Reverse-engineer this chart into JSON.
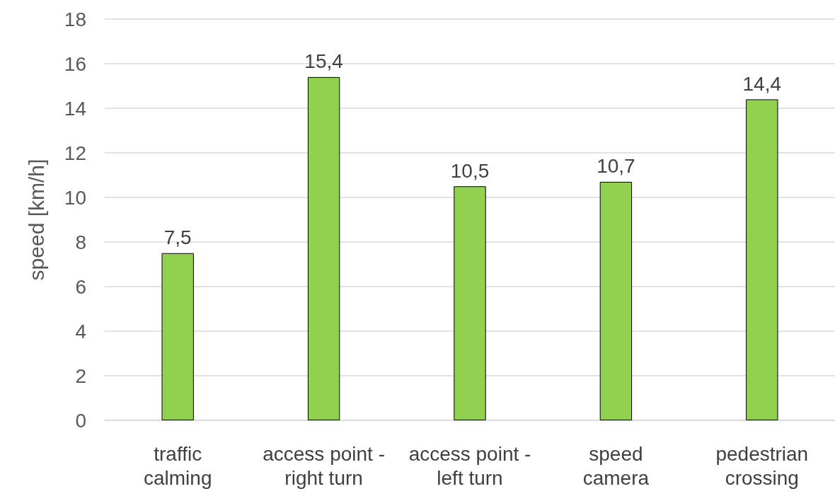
{
  "chart_data": {
    "type": "bar",
    "ylabel": "speed [km/h]",
    "categories": [
      "traffic calming",
      "access point - right turn",
      "access point - left turn",
      "speed camera",
      "pedestrian crossing"
    ],
    "values": [
      7.5,
      15.4,
      10.5,
      10.7,
      14.4
    ],
    "value_labels": [
      "7,5",
      "15,4",
      "10,5",
      "10,7",
      "14,4"
    ],
    "color": "#92d050",
    "ylim": [
      0,
      18
    ],
    "yticks": [
      0,
      2,
      4,
      6,
      8,
      10,
      12,
      14,
      16,
      18
    ],
    "grid": "y"
  }
}
